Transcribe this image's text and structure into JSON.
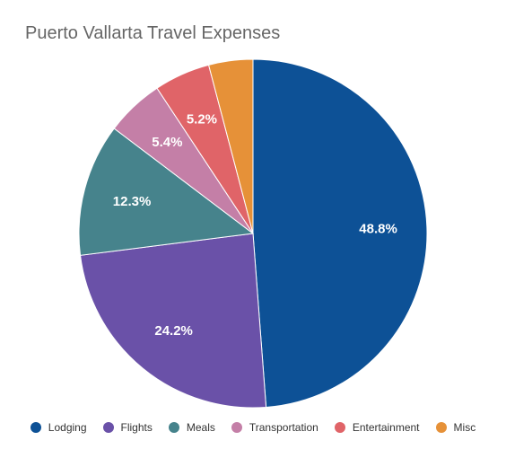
{
  "chart_data": {
    "type": "pie",
    "title": "Puerto Vallarta Travel Expenses",
    "categories": [
      "Lodging",
      "Flights",
      "Meals",
      "Transportation",
      "Entertainment",
      "Misc"
    ],
    "values": [
      48.8,
      24.2,
      12.3,
      5.4,
      5.2,
      4.1
    ],
    "labels": [
      "48.8%",
      "24.2%",
      "12.3%",
      "5.4%",
      "5.2%",
      ""
    ],
    "colors": [
      "#0d5196",
      "#6a51a8",
      "#46838c",
      "#c47fa7",
      "#e06468",
      "#e69138"
    ],
    "unit": "%",
    "legend_position": "bottom"
  }
}
